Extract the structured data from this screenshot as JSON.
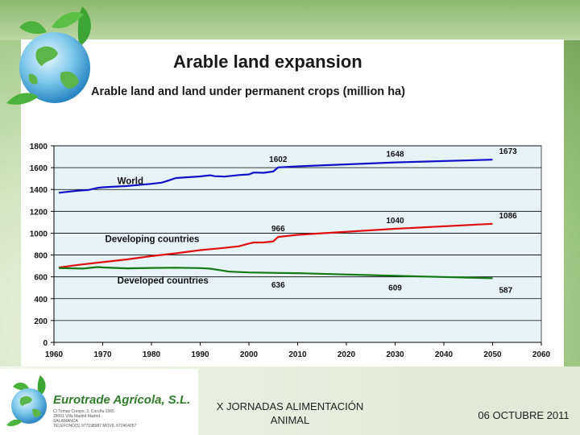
{
  "slide": {
    "title": "Arable land expansion",
    "subtitle": "Arable land and land under permanent crops (million ha)"
  },
  "footer": {
    "company_name": "Eurotrade Agrícola, S.L.",
    "company_details": [
      "C/ Tomas Crespo, 3, Coruña 1565",
      "28001 Villa Madrid Madrid",
      "SALAMANCA",
      "TELEFONO(S) 977198987     MOVIL 672464057"
    ],
    "event_line1": "X JORNADAS ALIMENTACIÓN",
    "event_line2": "ANIMAL",
    "date": "06 OCTUBRE 2011"
  },
  "colors": {
    "world": "#1010c8",
    "developing": "#e01010",
    "developed": "#107a10",
    "plot_bg": "#e6f4f8",
    "brand_green": "#2f7d2a"
  },
  "chart_data": {
    "type": "line",
    "title": "Arable land expansion",
    "subtitle": "Arable land and land under permanent crops (million ha)",
    "xlabel": "",
    "ylabel": "",
    "xlim": [
      1960,
      2060
    ],
    "ylim": [
      0,
      1800
    ],
    "xticks": [
      1960,
      1970,
      1980,
      1990,
      2000,
      2010,
      2020,
      2030,
      2040,
      2050,
      2060
    ],
    "yticks": [
      0,
      200,
      400,
      600,
      800,
      1000,
      1200,
      1400,
      1600,
      1800
    ],
    "grid": "horizontal",
    "series": [
      {
        "name": "World",
        "color": "#1010c8",
        "x": [
          1961,
          1965,
          1967,
          1969,
          1970,
          1975,
          1977,
          1980,
          1982,
          1983,
          1985,
          1990,
          1992,
          1993,
          1995,
          1998,
          2000,
          2001,
          2003,
          2005,
          2006,
          2010,
          2030,
          2050
        ],
        "y": [
          1370,
          1390,
          1395,
          1415,
          1420,
          1432,
          1440,
          1452,
          1462,
          1475,
          1505,
          1520,
          1530,
          1522,
          1518,
          1532,
          1538,
          1555,
          1553,
          1565,
          1602,
          1612,
          1648,
          1673
        ],
        "point_labels": [
          {
            "x": 2006,
            "y": 1602,
            "text": "1602"
          },
          {
            "x": 2030,
            "y": 1648,
            "text": "1648"
          },
          {
            "x": 2050,
            "y": 1673,
            "text": "1673"
          }
        ]
      },
      {
        "name": "Developing countries",
        "color": "#e01010",
        "x": [
          1961,
          1965,
          1970,
          1975,
          1980,
          1985,
          1990,
          1995,
          1998,
          2000,
          2001,
          2003,
          2005,
          2006,
          2010,
          2030,
          2050
        ],
        "y": [
          685,
          710,
          735,
          760,
          790,
          815,
          845,
          865,
          880,
          905,
          915,
          915,
          925,
          966,
          985,
          1040,
          1086
        ],
        "point_labels": [
          {
            "x": 2006,
            "y": 966,
            "text": "966"
          },
          {
            "x": 2030,
            "y": 1040,
            "text": "1040"
          },
          {
            "x": 2050,
            "y": 1086,
            "text": "1086"
          }
        ]
      },
      {
        "name": "Developed countries",
        "color": "#107a10",
        "x": [
          1961,
          1966,
          1969,
          1970,
          1975,
          1980,
          1985,
          1990,
          1992,
          1994,
          1996,
          2000,
          2006,
          2010,
          2030,
          2050
        ],
        "y": [
          680,
          676,
          690,
          686,
          678,
          682,
          684,
          680,
          675,
          662,
          648,
          640,
          636,
          634,
          609,
          587
        ],
        "point_labels": [
          {
            "x": 2006,
            "y": 636,
            "text": "636"
          },
          {
            "x": 2030,
            "y": 609,
            "text": "609"
          },
          {
            "x": 2050,
            "y": 587,
            "text": "587"
          }
        ]
      }
    ]
  }
}
